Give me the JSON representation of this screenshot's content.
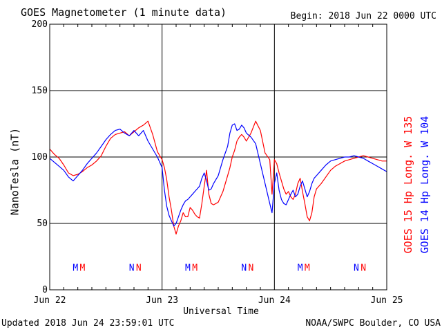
{
  "header": {
    "title": "GOES Magnetometer (1 minute data)",
    "begin_label": "Begin:  2018 Jun 22 0000 UTC"
  },
  "footer": {
    "updated": "Updated 2018 Jun 24 23:59:01 UTC",
    "credit": "NOAA/SWPC Boulder, CO USA"
  },
  "colors": {
    "goes15": "#ff0000",
    "goes14": "#0000ff",
    "axis": "#000000"
  },
  "chart_data": {
    "type": "line",
    "xlabel": "Universal Time",
    "ylabel": "NanoTesla (nT)",
    "xlim": [
      0,
      72
    ],
    "x_units": "hours since 2018 Jun 22 0000 UTC",
    "ylim": [
      0,
      200
    ],
    "y_ticks": [
      0,
      50,
      100,
      150,
      200
    ],
    "x_ticks": [
      {
        "value": 0,
        "label": "Jun 22"
      },
      {
        "value": 24,
        "label": "Jun 23"
      },
      {
        "value": 48,
        "label": "Jun 24"
      },
      {
        "value": 72,
        "label": "Jun 25"
      }
    ],
    "grid": true,
    "series": [
      {
        "name": "GOES 15 Hp  Long. W 135",
        "color": "#ff0000",
        "x": [
          0,
          1,
          2,
          3,
          4,
          5,
          6,
          7,
          8,
          9,
          10,
          11,
          12,
          13,
          14,
          15,
          16,
          17,
          18,
          19,
          20,
          21,
          22,
          23,
          24,
          24.5,
          25,
          25.5,
          26,
          26.5,
          27,
          27.5,
          28,
          28.5,
          29,
          29.5,
          30,
          30.5,
          31,
          31.5,
          32,
          32.5,
          33,
          33.5,
          34,
          34.5,
          35,
          36,
          37,
          38,
          38.5,
          39,
          39.5,
          40,
          40.5,
          41,
          41.5,
          42,
          43,
          44,
          45,
          46,
          47,
          47.5,
          48,
          48.5,
          49,
          49.5,
          50,
          50.5,
          51,
          51.5,
          52,
          52.5,
          53,
          53.5,
          54,
          54.5,
          55,
          55.5,
          56,
          56.5,
          57,
          58,
          59,
          60,
          61,
          62,
          63,
          64,
          65,
          66,
          67,
          68,
          69,
          70,
          71,
          72
        ],
        "values": [
          106,
          102,
          99,
          94,
          88,
          86,
          87,
          89,
          92,
          94,
          97,
          101,
          108,
          114,
          117,
          118,
          119,
          116,
          119,
          122,
          124,
          127,
          117,
          104,
          98,
          92,
          83,
          70,
          60,
          48,
          42,
          48,
          52,
          58,
          55,
          55,
          62,
          60,
          57,
          55,
          54,
          65,
          78,
          90,
          72,
          65,
          64,
          66,
          74,
          86,
          92,
          100,
          105,
          112,
          115,
          117,
          115,
          112,
          118,
          127,
          120,
          103,
          98,
          72,
          98,
          95,
          88,
          82,
          76,
          72,
          74,
          70,
          68,
          72,
          80,
          84,
          74,
          65,
          55,
          52,
          58,
          70,
          76,
          80,
          85,
          90,
          93,
          95,
          97,
          98,
          99,
          100,
          101,
          100,
          99,
          98,
          97,
          97
        ]
      },
      {
        "name": "GOES 14 Hp  Long. W 104",
        "color": "#0000ff",
        "x": [
          0,
          1,
          2,
          3,
          4,
          5,
          6,
          7,
          8,
          9,
          10,
          11,
          12,
          13,
          14,
          15,
          16,
          17,
          18,
          19,
          20,
          21,
          22,
          23,
          24,
          24.5,
          25,
          25.5,
          26,
          26.5,
          27,
          27.5,
          28,
          28.5,
          29,
          29.5,
          30,
          30.5,
          31,
          31.5,
          32,
          32.5,
          33,
          33.5,
          34,
          34.5,
          35,
          36,
          37,
          38,
          38.5,
          39,
          39.5,
          40,
          40.5,
          41,
          41.5,
          42,
          43,
          44,
          45,
          46,
          47,
          47.5,
          48,
          48.5,
          49,
          49.5,
          50,
          50.5,
          51,
          51.5,
          52,
          52.5,
          53,
          53.5,
          54,
          54.5,
          55,
          55.5,
          56,
          56.5,
          57,
          58,
          59,
          60,
          61,
          62,
          63,
          64,
          65,
          66,
          67,
          68,
          69,
          70,
          71,
          72
        ],
        "values": [
          99,
          96,
          93,
          90,
          85,
          82,
          86,
          90,
          95,
          99,
          103,
          108,
          113,
          117,
          120,
          121,
          118,
          116,
          120,
          116,
          120,
          112,
          106,
          100,
          92,
          75,
          63,
          56,
          52,
          48,
          50,
          55,
          60,
          64,
          67,
          68,
          70,
          72,
          74,
          76,
          78,
          84,
          88,
          82,
          75,
          76,
          80,
          86,
          98,
          108,
          118,
          124,
          125,
          120,
          121,
          124,
          122,
          118,
          115,
          110,
          95,
          80,
          65,
          58,
          80,
          88,
          75,
          68,
          65,
          64,
          68,
          72,
          75,
          70,
          72,
          78,
          82,
          76,
          70,
          74,
          80,
          84,
          86,
          90,
          94,
          97,
          98,
          99,
          100,
          100,
          101,
          100,
          99,
          97,
          95,
          93,
          91,
          89
        ]
      }
    ],
    "annotations": [
      {
        "text": "M",
        "x": 5.5,
        "color": "#0000ff"
      },
      {
        "text": "M",
        "x": 7.0,
        "color": "#ff0000"
      },
      {
        "text": "N",
        "x": 17.5,
        "color": "#0000ff"
      },
      {
        "text": "N",
        "x": 19.0,
        "color": "#ff0000"
      },
      {
        "text": "M",
        "x": 29.5,
        "color": "#0000ff"
      },
      {
        "text": "M",
        "x": 31.0,
        "color": "#ff0000"
      },
      {
        "text": "N",
        "x": 41.5,
        "color": "#0000ff"
      },
      {
        "text": "N",
        "x": 43.0,
        "color": "#ff0000"
      },
      {
        "text": "M",
        "x": 53.5,
        "color": "#0000ff"
      },
      {
        "text": "M",
        "x": 55.0,
        "color": "#ff0000"
      },
      {
        "text": "N",
        "x": 65.5,
        "color": "#0000ff"
      },
      {
        "text": "N",
        "x": 67.0,
        "color": "#ff0000"
      }
    ],
    "annotation_y": 17
  }
}
